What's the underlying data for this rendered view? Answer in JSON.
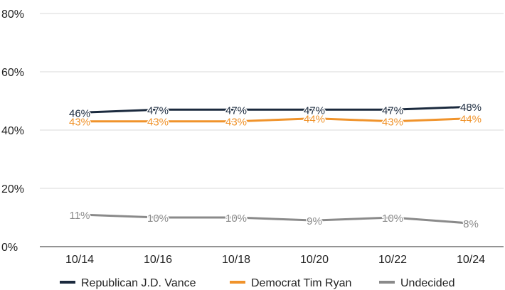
{
  "chart_data": {
    "type": "line",
    "title": "",
    "xlabel": "",
    "ylabel": "",
    "categories": [
      "10/14",
      "10/16",
      "10/18",
      "10/20",
      "10/22",
      "10/24"
    ],
    "y_ticks": [
      "0%",
      "20%",
      "40%",
      "60%",
      "80%"
    ],
    "y_tick_values": [
      0,
      20,
      40,
      60,
      80
    ],
    "ylim": [
      0,
      80
    ],
    "grid": true,
    "legend_position": "bottom",
    "series": [
      {
        "name": "Republican J.D. Vance",
        "color": "#1b2a3e",
        "values": [
          46,
          47,
          47,
          47,
          47,
          48
        ],
        "labels": [
          "46%",
          "47%",
          "47%",
          "47%",
          "47%",
          "48%"
        ]
      },
      {
        "name": "Democrat Tim Ryan",
        "color": "#f0932b",
        "values": [
          43,
          43,
          43,
          44,
          43,
          44
        ],
        "labels": [
          "43%",
          "43%",
          "43%",
          "44%",
          "43%",
          "44%"
        ]
      },
      {
        "name": "Undecided",
        "color": "#8a8a8a",
        "values": [
          11,
          10,
          10,
          9,
          10,
          8
        ],
        "labels": [
          "11%",
          "10%",
          "10%",
          "9%",
          "10%",
          "8%"
        ]
      }
    ]
  }
}
